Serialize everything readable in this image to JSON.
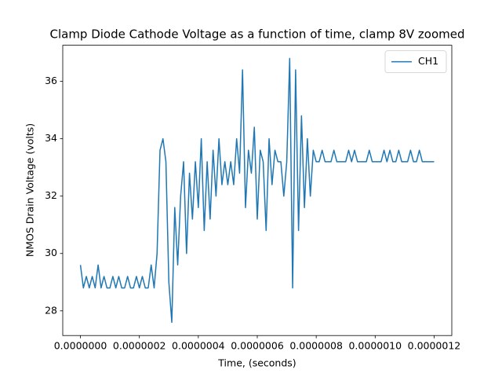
{
  "chart_data": {
    "type": "line",
    "title": "Clamp Diode Cathode Voltage as a function of time, clamp 8V zoomed",
    "x_label": "Time, (seconds)",
    "y_label": "NMOS Drain Voltage (volts)",
    "x": [
      0,
      1e-08,
      2e-08,
      3e-08,
      4e-08,
      5e-08,
      6e-08,
      7e-08,
      8e-08,
      9e-08,
      1e-07,
      1.1e-07,
      1.2e-07,
      1.3e-07,
      1.4e-07,
      1.5e-07,
      1.6e-07,
      1.7e-07,
      1.8e-07,
      1.9e-07,
      2e-07,
      2.1e-07,
      2.2e-07,
      2.3e-07,
      2.4e-07,
      2.5e-07,
      2.6e-07,
      2.7e-07,
      2.8e-07,
      2.9e-07,
      3e-07,
      3.1e-07,
      3.2e-07,
      3.3e-07,
      3.4e-07,
      3.5e-07,
      3.6e-07,
      3.7e-07,
      3.8e-07,
      3.9e-07,
      4e-07,
      4.1e-07,
      4.2e-07,
      4.3e-07,
      4.4e-07,
      4.5e-07,
      4.6e-07,
      4.7e-07,
      4.8e-07,
      4.9e-07,
      5e-07,
      5.1e-07,
      5.2e-07,
      5.3e-07,
      5.4e-07,
      5.5e-07,
      5.6e-07,
      5.7e-07,
      5.8e-07,
      5.9e-07,
      6e-07,
      6.1e-07,
      6.2e-07,
      6.3e-07,
      6.4e-07,
      6.5e-07,
      6.6e-07,
      6.7e-07,
      6.8e-07,
      6.9e-07,
      7e-07,
      7.1e-07,
      7.2e-07,
      7.3e-07,
      7.4e-07,
      7.5e-07,
      7.6e-07,
      7.7e-07,
      7.8e-07,
      7.9e-07,
      8e-07,
      8.1e-07,
      8.2e-07,
      8.3e-07,
      8.4e-07,
      8.5e-07,
      8.6e-07,
      8.7e-07,
      8.8e-07,
      8.9e-07,
      9e-07,
      9.1e-07,
      9.2e-07,
      9.3e-07,
      9.4e-07,
      9.5e-07,
      9.6e-07,
      9.7e-07,
      9.8e-07,
      9.9e-07,
      1e-06,
      1.01e-06,
      1.02e-06,
      1.03e-06,
      1.04e-06,
      1.05e-06,
      1.06e-06,
      1.07e-06,
      1.08e-06,
      1.09e-06,
      1.1e-06,
      1.11e-06,
      1.12e-06,
      1.13e-06,
      1.14e-06,
      1.15e-06,
      1.16e-06,
      1.17e-06,
      1.18e-06,
      1.19e-06,
      1.2e-06
    ],
    "series": [
      {
        "name": "CH1",
        "color": "#1f77b4",
        "values": [
          29.6,
          28.8,
          29.2,
          28.8,
          29.2,
          28.8,
          29.6,
          28.8,
          29.2,
          28.8,
          28.8,
          29.2,
          28.8,
          29.2,
          28.8,
          28.8,
          29.2,
          28.8,
          28.8,
          29.2,
          28.8,
          29.2,
          28.8,
          28.8,
          29.6,
          28.8,
          30.0,
          33.6,
          34.0,
          33.2,
          29.0,
          27.6,
          31.6,
          29.6,
          32.0,
          33.2,
          30.0,
          32.8,
          31.2,
          33.2,
          31.6,
          34.0,
          30.8,
          33.2,
          31.2,
          33.6,
          32.0,
          34.0,
          32.4,
          33.2,
          32.4,
          33.2,
          32.4,
          34.0,
          32.8,
          36.4,
          31.6,
          33.6,
          32.8,
          34.4,
          31.2,
          33.6,
          33.2,
          30.8,
          34.0,
          32.4,
          33.6,
          33.2,
          33.2,
          32.0,
          33.2,
          36.8,
          28.8,
          36.4,
          30.8,
          34.8,
          31.6,
          34.0,
          32.0,
          33.6,
          33.2,
          33.2,
          33.6,
          33.2,
          33.2,
          33.2,
          33.6,
          33.2,
          33.2,
          33.2,
          33.2,
          33.6,
          33.2,
          33.6,
          33.2,
          33.2,
          33.2,
          33.2,
          33.6,
          33.2,
          33.2,
          33.2,
          33.2,
          33.6,
          33.2,
          33.6,
          33.2,
          33.2,
          33.6,
          33.2,
          33.2,
          33.2,
          33.6,
          33.2,
          33.2,
          33.6,
          33.2,
          33.2,
          33.2,
          33.2,
          33.2
        ]
      }
    ],
    "xlim": [
      -6e-08,
      1.26e-06
    ],
    "ylim": [
      27.14,
      37.26
    ],
    "xticks": [
      {
        "value": 0,
        "label": "0.0000000"
      },
      {
        "value": 2e-07,
        "label": "0.0000002"
      },
      {
        "value": 4e-07,
        "label": "0.0000004"
      },
      {
        "value": 6e-07,
        "label": "0.0000006"
      },
      {
        "value": 8e-07,
        "label": "0.0000008"
      },
      {
        "value": 1e-06,
        "label": "0.0000010"
      },
      {
        "value": 1.2e-06,
        "label": "0.0000012"
      }
    ],
    "yticks": [
      28,
      30,
      32,
      34,
      36
    ],
    "legend": "upper right"
  }
}
